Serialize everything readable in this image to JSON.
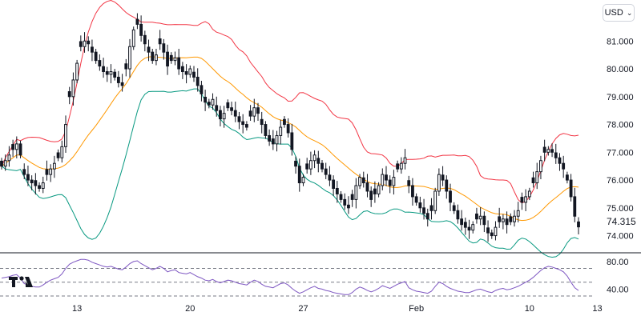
{
  "currency_selector": {
    "label": "USD",
    "chevron_icon": "chevron-down-icon"
  },
  "last_price_label": "74.315",
  "logo": {
    "icon": "tradingview-logo-icon"
  },
  "colors": {
    "candle": "#131722",
    "upper_band": "#f23645",
    "middle_band": "#ff9800",
    "lower_band": "#089981",
    "rsi_line": "#7e57c2",
    "grid_dash": "#787b86"
  },
  "chart_data": {
    "type": "candlestick",
    "price_axis": {
      "ticks": [
        "74.000",
        "75.000",
        "76.000",
        "77.000",
        "78.000",
        "79.000",
        "80.000",
        "81.000"
      ],
      "range": [
        73.7,
        81.9
      ]
    },
    "rsi_axis": {
      "ticks": [
        "40.00",
        "80.00"
      ],
      "range": [
        30,
        88
      ],
      "levels": [
        30,
        50,
        70
      ]
    },
    "time_axis": {
      "ticks": [
        {
          "label": "13",
          "index": 20
        },
        {
          "label": "20",
          "index": 50
        },
        {
          "label": "27",
          "index": 80
        },
        {
          "label": "Feb",
          "index": 110
        },
        {
          "label": "10",
          "index": 140
        },
        {
          "label": "13",
          "index": 158
        }
      ]
    },
    "series_close": [
      76.5,
      76.7,
      76.9,
      77.1,
      77.3,
      76.9,
      76.2,
      76.0,
      75.9,
      75.8,
      75.7,
      75.9,
      76.2,
      76.4,
      76.6,
      76.8,
      77.2,
      78.0,
      79.0,
      79.6,
      80.2,
      80.8,
      81.0,
      80.9,
      80.6,
      80.3,
      80.1,
      79.9,
      79.8,
      79.9,
      79.7,
      79.5,
      79.4,
      80.0,
      80.8,
      81.4,
      81.6,
      81.2,
      80.9,
      80.6,
      80.3,
      80.5,
      80.9,
      80.6,
      80.1,
      80.3,
      80.4,
      80.0,
      79.9,
      79.8,
      80.0,
      79.7,
      79.4,
      79.1,
      78.8,
      78.7,
      78.9,
      78.5,
      78.2,
      78.4,
      78.6,
      78.5,
      78.3,
      78.1,
      78.0,
      77.9,
      78.3,
      78.6,
      78.4,
      78.0,
      77.6,
      77.4,
      77.3,
      77.6,
      77.9,
      78.0,
      77.7,
      77.1,
      76.5,
      75.9,
      76.1,
      76.4,
      76.7,
      76.9,
      76.6,
      76.4,
      76.2,
      76.0,
      75.7,
      75.5,
      75.3,
      75.1,
      75.0,
      75.3,
      75.8,
      76.1,
      75.9,
      75.6,
      75.3,
      75.5,
      75.8,
      76.2,
      76.0,
      75.8,
      76.1,
      76.4,
      76.6,
      76.8,
      75.8,
      75.4,
      75.2,
      75.0,
      74.8,
      74.6,
      74.9,
      75.6,
      76.2,
      76.0,
      75.6,
      75.2,
      74.9,
      74.6,
      74.4,
      74.3,
      74.2,
      74.4,
      74.6,
      74.7,
      74.4,
      74.1,
      74.0,
      74.3,
      74.5,
      74.6,
      74.4,
      74.5,
      74.7,
      74.9,
      75.2,
      75.4,
      75.6,
      75.9,
      76.3,
      76.7,
      77.0,
      77.1,
      77.0,
      76.8,
      76.6,
      76.4,
      76.0,
      75.4,
      74.7,
      74.315
    ],
    "bollinger": {
      "upper_color": "#f23645",
      "middle_color": "#ff9800",
      "lower_color": "#089981"
    },
    "rsi_line": [
      56,
      57,
      58,
      60,
      61,
      56,
      48,
      46,
      44,
      43,
      43,
      46,
      50,
      53,
      55,
      57,
      62,
      70,
      76,
      79,
      81,
      83,
      83,
      82,
      79,
      77,
      75,
      73,
      72,
      73,
      71,
      69,
      68,
      72,
      77,
      80,
      81,
      77,
      74,
      71,
      68,
      70,
      73,
      70,
      65,
      67,
      68,
      64,
      63,
      62,
      64,
      61,
      58,
      56,
      53,
      52,
      54,
      51,
      49,
      51,
      53,
      52,
      50,
      48,
      47,
      46,
      50,
      53,
      51,
      47,
      44,
      43,
      42,
      45,
      48,
      49,
      46,
      41,
      37,
      34,
      36,
      39,
      42,
      44,
      41,
      40,
      38,
      37,
      35,
      34,
      33,
      32,
      32,
      35,
      40,
      43,
      41,
      38,
      36,
      38,
      41,
      45,
      43,
      41,
      44,
      47,
      49,
      51,
      42,
      39,
      37,
      36,
      35,
      34,
      37,
      44,
      50,
      48,
      44,
      41,
      39,
      37,
      36,
      35,
      35,
      37,
      39,
      40,
      38,
      36,
      35,
      38,
      40,
      41,
      39,
      40,
      42,
      44,
      47,
      50,
      53,
      57,
      62,
      67,
      71,
      73,
      72,
      70,
      68,
      65,
      59,
      50,
      42,
      38
    ]
  }
}
